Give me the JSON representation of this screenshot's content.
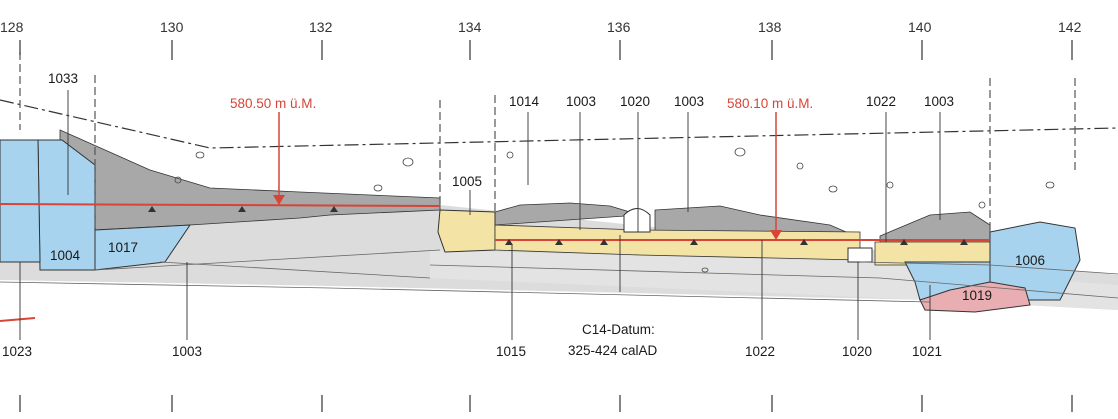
{
  "colors": {
    "background": "#ffffff",
    "sediment_light": "#dcdcdc",
    "sediment_dark": "#a8a8a8",
    "stone_blue": "#a7d3ef",
    "stone_yellow": "#f3e3a5",
    "stone_red": "#e8aeb1",
    "datum_line": "#d64538",
    "outline": "#333333"
  },
  "axis": {
    "ticks": [
      "128",
      "130",
      "132",
      "134",
      "136",
      "138",
      "140",
      "142"
    ]
  },
  "elevations": [
    {
      "label": "580.50 m ü.M."
    },
    {
      "label": "580.10 m ü.M."
    }
  ],
  "top_labels": [
    "1033",
    "1005",
    "1014",
    "1003",
    "1020",
    "1003",
    "1022",
    "1003"
  ],
  "inline_labels": [
    "1017",
    "1004",
    "1006",
    "1019"
  ],
  "bottom_labels": [
    "1023",
    "1003",
    "1015",
    "1022",
    "1020",
    "1021"
  ],
  "c14": {
    "line1": "C14-Datum:",
    "line2": "325-424 calAD"
  }
}
